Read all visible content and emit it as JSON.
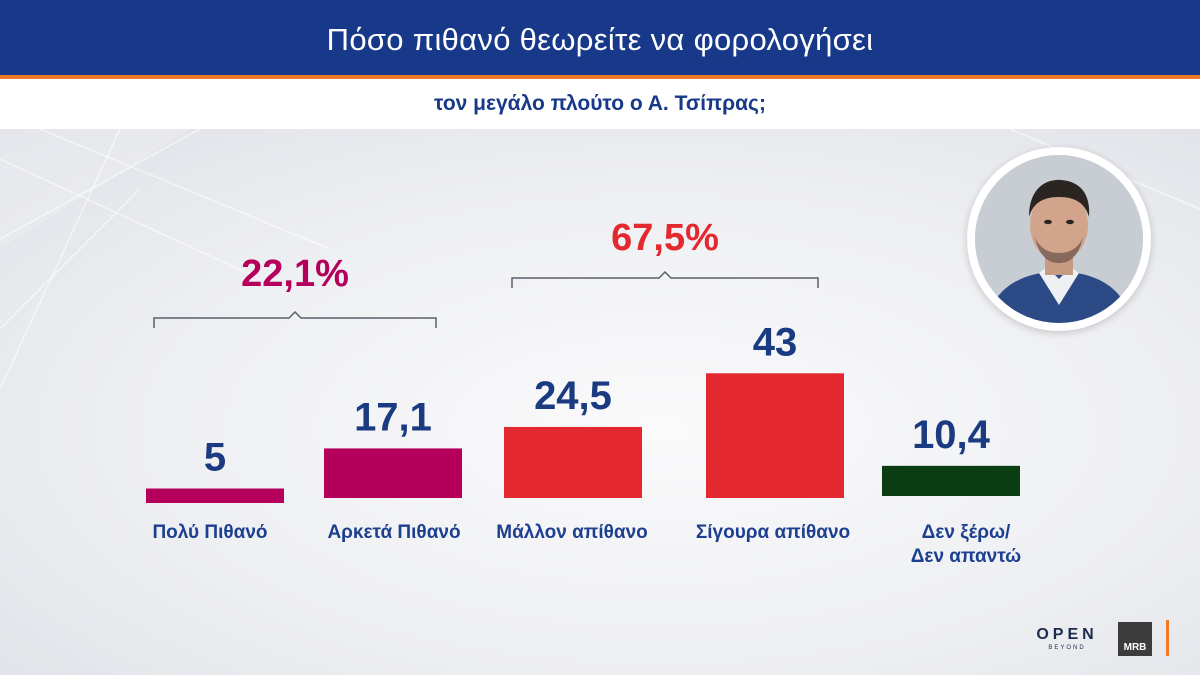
{
  "header": {
    "title": "Πόσο πιθανό θεωρείτε να φορολογήσει",
    "subtitle": "τον μεγάλο πλούτο ο Α. Τσίπρας;"
  },
  "chart_data": {
    "type": "bar",
    "categories": [
      "Πολύ Πιθανό",
      "Αρκετά Πιθανό",
      "Μάλλον απίθανο",
      "Σίγουρα απίθανο",
      "Δεν ξέρω/\nΔεν απαντώ"
    ],
    "values": [
      5,
      17.1,
      24.5,
      43,
      10.4
    ],
    "value_labels": [
      "5",
      "17,1",
      "24,5",
      "43",
      "10,4"
    ],
    "colors": [
      "#b5005b",
      "#b5005b",
      "#e3282f",
      "#e3282f",
      "#0b3d12"
    ],
    "groups": [
      {
        "label": "22,1%",
        "from": 0,
        "to": 1,
        "color": "#b5005b"
      },
      {
        "label": "67,5%",
        "from": 2,
        "to": 3,
        "color": "#e3282f"
      }
    ],
    "grid": false,
    "legend": "none"
  },
  "logos": {
    "channel": "OPEN",
    "channel_sub": "BEYOND",
    "pollster": "MRB"
  },
  "colors": {
    "header_bg": "#18398a",
    "accent": "#f07a2c",
    "label_text": "#1c3f8f",
    "value_text": "#1a3a82"
  }
}
